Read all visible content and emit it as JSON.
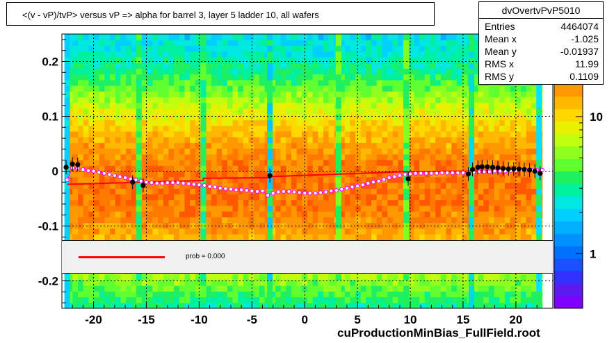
{
  "chart_data": {
    "type": "heatmap",
    "title": "<(v - vP)/tvP> versus   vP => alpha for barrel 3, layer 5 ladder 10, all wafers",
    "xlabel": "",
    "ylabel": "",
    "xlim": [
      -23,
      23.5
    ],
    "ylim": [
      -0.25,
      0.25
    ],
    "x_ticks": [
      -20,
      -15,
      -10,
      -5,
      0,
      5,
      10,
      15,
      20
    ],
    "x_tick_labels": [
      "-20",
      "-15",
      "-10",
      "-5",
      "0",
      "5",
      "10",
      "15",
      "20"
    ],
    "y_ticks": [
      -0.2,
      -0.1,
      0,
      0.1,
      0.2
    ],
    "y_tick_labels": [
      "-0.2",
      "-0.1",
      "0",
      "0.1",
      "0.2"
    ],
    "z_scale": "log",
    "z_tick_labels": [
      "1",
      "10"
    ],
    "z_ticks": [
      1,
      10
    ],
    "z_range": [
      0.4,
      40
    ],
    "grid": true,
    "stats": {
      "name": "dvOvertvPvP5010",
      "rows": [
        {
          "label": "Entries",
          "value": "4464074"
        },
        {
          "label": "Mean x",
          "value": "-1.025"
        },
        {
          "label": "Mean y",
          "value": "-0.01937"
        },
        {
          "label": "RMS x",
          "value": "11.99"
        },
        {
          "label": "RMS y",
          "value": "0.1109"
        }
      ]
    },
    "fit_legend": "prob = 0.000",
    "footer": "cuProductionMinBias_FullField.root",
    "colors": {
      "fit_line": "#ff0000",
      "profile_points": "#000000",
      "mean_points": "#ff00ff"
    },
    "vertical_bands": [
      {
        "x": -22.5,
        "color": "#00d0ff"
      },
      {
        "x": -15.7,
        "color": "#20f060"
      },
      {
        "x": -9.6,
        "color": "#20f060"
      },
      {
        "x": -3.3,
        "color": "#00c8ff"
      },
      {
        "x": 3.2,
        "color": "#80ff20"
      },
      {
        "x": 9.6,
        "color": "#80ff20"
      },
      {
        "x": 15.8,
        "color": "#00d8e8"
      },
      {
        "x": 22.2,
        "color": "#00e0ff"
      }
    ],
    "series": [
      {
        "kind": "profile",
        "x": [
          -22.6,
          -22.0,
          -21.5,
          -16.3,
          -15.3,
          -3.3,
          9.8,
          15.5,
          15.9,
          16.4,
          16.8,
          17.3,
          17.8,
          18.3,
          18.8,
          19.3,
          19.8,
          20.3,
          20.8,
          21.3,
          21.8,
          22.3
        ],
        "y": [
          0.007,
          0.013,
          0.012,
          -0.02,
          -0.026,
          -0.008,
          -0.014,
          -0.005,
          0.003,
          0.007,
          0.008,
          0.008,
          0.007,
          0.006,
          0.005,
          0.004,
          0.004,
          0.004,
          0.003,
          0.002,
          0.0,
          -0.004
        ]
      },
      {
        "kind": "mean",
        "x": [
          -22.5,
          -22.0,
          -21.5,
          -21.0,
          -20.5,
          -20.0,
          -19.5,
          -19.0,
          -18.5,
          -18.0,
          -17.5,
          -17.0,
          -16.5,
          -16.0,
          -15.5,
          -15.0,
          -14.5,
          -14.0,
          -13.5,
          -13.0,
          -12.5,
          -12.0,
          -11.5,
          -11.0,
          -10.5,
          -10.0,
          -9.5,
          -9.0,
          -8.5,
          -8.0,
          -7.5,
          -7.0,
          -6.5,
          -6.0,
          -5.5,
          -5.0,
          -4.5,
          -4.0,
          -3.5,
          -3.0,
          -2.5,
          -2.0,
          -1.5,
          -1.0,
          -0.5,
          0.0,
          0.5,
          1.0,
          1.5,
          2.0,
          2.5,
          3.0,
          3.5,
          4.0,
          4.5,
          5.0,
          5.5,
          6.0,
          6.5,
          7.0,
          7.5,
          8.0,
          8.5,
          9.0,
          9.5,
          10.0,
          10.5,
          11.0,
          11.5,
          12.0,
          12.5,
          13.0,
          13.5,
          14.0,
          14.5,
          15.0,
          15.5,
          16.0,
          16.5,
          17.0,
          17.5,
          18.0,
          18.5,
          19.0,
          19.5,
          20.0,
          20.5,
          21.0,
          21.5,
          22.0,
          22.5
        ],
        "y": [
          -0.016,
          0.006,
          0.005,
          0.003,
          0.001,
          0.0,
          -0.002,
          -0.004,
          -0.006,
          -0.008,
          -0.01,
          -0.012,
          -0.014,
          -0.016,
          -0.018,
          -0.02,
          -0.021,
          -0.022,
          -0.022,
          -0.021,
          -0.021,
          -0.021,
          -0.022,
          -0.023,
          -0.024,
          -0.025,
          -0.026,
          -0.028,
          -0.029,
          -0.031,
          -0.032,
          -0.033,
          -0.034,
          -0.034,
          -0.035,
          -0.036,
          -0.037,
          -0.036,
          -0.044,
          -0.04,
          -0.038,
          -0.037,
          -0.037,
          -0.038,
          -0.039,
          -0.04,
          -0.04,
          -0.04,
          -0.039,
          -0.038,
          -0.036,
          -0.035,
          -0.033,
          -0.031,
          -0.029,
          -0.027,
          -0.025,
          -0.022,
          -0.02,
          -0.018,
          -0.015,
          -0.012,
          -0.01,
          -0.008,
          -0.006,
          -0.005,
          -0.004,
          -0.004,
          -0.004,
          -0.004,
          -0.004,
          -0.003,
          -0.003,
          -0.003,
          -0.003,
          -0.003,
          -0.002,
          -0.002,
          -0.001,
          -0.001,
          -0.001,
          0.0,
          0.0,
          0.0,
          0.001,
          0.001,
          0.002,
          0.002,
          0.002,
          0.002,
          0.002
        ]
      },
      {
        "kind": "fit",
        "x": [
          -22.5,
          -9.6,
          -9.6,
          -3.3,
          -3.3,
          9.6,
          9.6,
          15.8,
          15.8,
          22.5
        ],
        "y": [
          -0.024,
          -0.017,
          -0.013,
          -0.012,
          -0.01,
          -0.001,
          -0.001,
          0.0,
          0.001,
          0.002
        ]
      }
    ]
  }
}
